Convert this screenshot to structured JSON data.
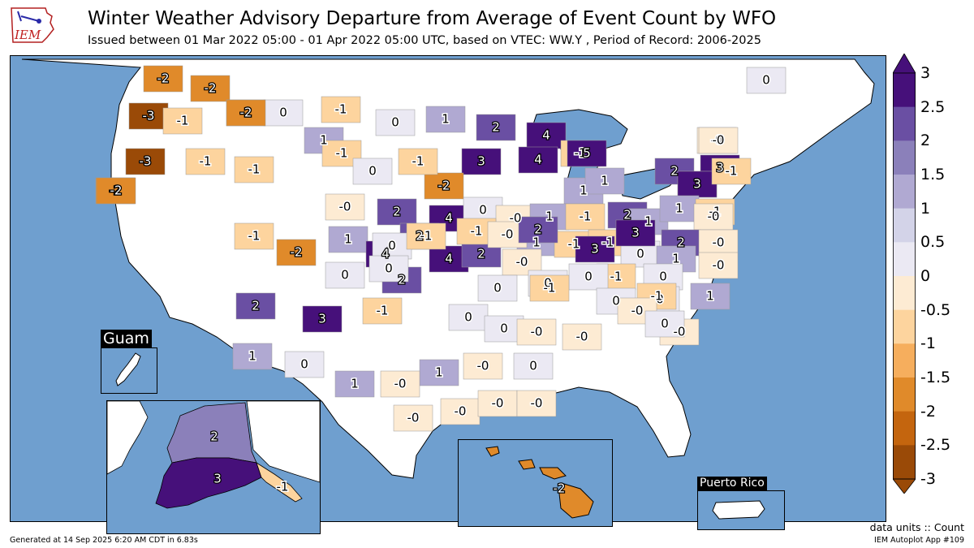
{
  "header": {
    "logo_text": "IEM",
    "title": "Winter Weather Advisory Departure from Average of Event Count by WFO",
    "subtitle": "Issued between 01 Mar 2022 05:00 - 01 Apr 2022 05:00 UTC, based on VTEC: WW.Y  , Period of Record: 2006-2025"
  },
  "colors": {
    "ocean": "#6f9fcf",
    "land_nodata": "#ffffff",
    "scale": [
      "#9a4a07",
      "#c4650e",
      "#e08a2a",
      "#f6ae5d",
      "#fdd49e",
      "#fdebd3",
      "#ebe9f3",
      "#d3d3e8",
      "#b0a9d2",
      "#8b80ba",
      "#6a4fa3",
      "#46107a"
    ]
  },
  "colorbar": {
    "ticks": [
      "3",
      "2.5",
      "2",
      "1.5",
      "1",
      "0.5",
      "0",
      "-0.5",
      "-1",
      "-1.5",
      "-2",
      "-2.5",
      "-3"
    ]
  },
  "insets": {
    "guam": "Guam",
    "puerto_rico": "Puerto Rico"
  },
  "map_labels": [
    {
      "t": "-2",
      "v": -2
    },
    {
      "t": "-2",
      "v": -2
    },
    {
      "t": "-3",
      "v": -3
    },
    {
      "t": "-2",
      "v": -2
    },
    {
      "t": "0",
      "v": 0
    },
    {
      "t": "-1",
      "v": -1
    },
    {
      "t": "-1",
      "v": -1
    },
    {
      "t": "0",
      "v": 0
    },
    {
      "t": "1",
      "v": 1
    },
    {
      "t": "2",
      "v": 2
    },
    {
      "t": "4",
      "v": 4
    },
    {
      "t": "-3",
      "v": -3
    },
    {
      "t": "-1",
      "v": -1
    },
    {
      "t": "1",
      "v": 1
    },
    {
      "t": "-1",
      "v": -1
    },
    {
      "t": "-0",
      "v": -0.2
    },
    {
      "t": "0",
      "v": 0
    },
    {
      "t": "-1",
      "v": -1
    },
    {
      "t": "3",
      "v": 3
    },
    {
      "t": "4",
      "v": 4
    },
    {
      "t": "5",
      "v": 5
    },
    {
      "t": "2",
      "v": 2
    },
    {
      "t": "3",
      "v": 3
    },
    {
      "t": "-2",
      "v": -2
    },
    {
      "t": "-2",
      "v": -2
    },
    {
      "t": "-0",
      "v": -0.2
    },
    {
      "t": "-2",
      "v": -2
    },
    {
      "t": "3",
      "v": 3
    },
    {
      "t": "0",
      "v": 0
    },
    {
      "t": "1",
      "v": 1
    },
    {
      "t": "1",
      "v": 1
    },
    {
      "t": "3",
      "v": 3
    },
    {
      "t": "-1",
      "v": -1
    },
    {
      "t": "-1",
      "v": -1
    },
    {
      "t": "-2",
      "v": -2
    },
    {
      "t": "-0",
      "v": -0.2
    },
    {
      "t": "2",
      "v": 2
    },
    {
      "t": "4",
      "v": 4
    },
    {
      "t": "0",
      "v": 0
    },
    {
      "t": "-0",
      "v": -0.2
    },
    {
      "t": "1",
      "v": 1
    },
    {
      "t": "-1",
      "v": -1
    },
    {
      "t": "2",
      "v": 2
    },
    {
      "t": "1",
      "v": 1
    },
    {
      "t": "1",
      "v": 1
    },
    {
      "t": "-1",
      "v": -1
    },
    {
      "t": "-0",
      "v": -0.2
    },
    {
      "t": "-1",
      "v": -1
    },
    {
      "t": "-2",
      "v": -2
    },
    {
      "t": "1",
      "v": 1
    },
    {
      "t": "2",
      "v": 2
    },
    {
      "t": "1",
      "v": 1
    },
    {
      "t": "-1",
      "v": -1
    },
    {
      "t": "-1",
      "v": -1
    },
    {
      "t": "2",
      "v": 2
    },
    {
      "t": "-0",
      "v": -0.2
    },
    {
      "t": "-1",
      "v": -1
    },
    {
      "t": "4",
      "v": 4
    },
    {
      "t": "4",
      "v": 4
    },
    {
      "t": "2",
      "v": 2
    },
    {
      "t": "-0",
      "v": -0.2
    },
    {
      "t": "0",
      "v": 0
    },
    {
      "t": "0",
      "v": 0
    },
    {
      "t": "-1",
      "v": -1
    },
    {
      "t": "-0",
      "v": -0.2
    },
    {
      "t": "2",
      "v": 2
    },
    {
      "t": "0",
      "v": 0
    },
    {
      "t": "0",
      "v": 0
    },
    {
      "t": "-1",
      "v": -1
    },
    {
      "t": "2",
      "v": 2
    },
    {
      "t": "3",
      "v": 3
    },
    {
      "t": "-1",
      "v": -1
    },
    {
      "t": "0",
      "v": 0
    },
    {
      "t": "0",
      "v": 0
    },
    {
      "t": "0",
      "v": 0
    },
    {
      "t": "-1",
      "v": -1
    },
    {
      "t": "-1",
      "v": -1
    },
    {
      "t": "-0",
      "v": -0.2
    },
    {
      "t": "2",
      "v": 2
    },
    {
      "t": "3",
      "v": 3
    },
    {
      "t": "3",
      "v": 3
    },
    {
      "t": "1",
      "v": 1
    },
    {
      "t": "0",
      "v": 0
    },
    {
      "t": "0",
      "v": 0
    },
    {
      "t": "0",
      "v": 0
    },
    {
      "t": "-1",
      "v": -1
    },
    {
      "t": "-0",
      "v": -0.2
    },
    {
      "t": "1",
      "v": 1
    },
    {
      "t": "0",
      "v": 0
    },
    {
      "t": "0",
      "v": 0
    },
    {
      "t": "-0",
      "v": -0.2
    },
    {
      "t": "-0",
      "v": -0.2
    },
    {
      "t": "0",
      "v": 0
    },
    {
      "t": "1",
      "v": 1
    },
    {
      "t": "0",
      "v": 0
    },
    {
      "t": "1",
      "v": 1
    },
    {
      "t": "1",
      "v": 1
    },
    {
      "t": "-0",
      "v": -0.2
    },
    {
      "t": "0",
      "v": 0
    },
    {
      "t": "-0",
      "v": -0.2
    },
    {
      "t": "-0",
      "v": -0.2
    },
    {
      "t": "-0",
      "v": -0.2
    },
    {
      "t": "-0",
      "v": -0.2
    },
    {
      "t": "-0",
      "v": -0.2
    },
    {
      "t": "-0",
      "v": -0.2
    }
  ],
  "alaska_labels": [
    {
      "t": "2",
      "v": 2
    },
    {
      "t": "3",
      "v": 3
    },
    {
      "t": "-1",
      "v": -1
    }
  ],
  "hawaii_labels": [
    {
      "t": "-2",
      "v": -2
    }
  ],
  "footer": {
    "generated": "Generated at 14 Sep 2025 6:20 AM CDT in 6.83s",
    "units": "data units :: Count",
    "app": "IEM Autoplot App #109"
  }
}
